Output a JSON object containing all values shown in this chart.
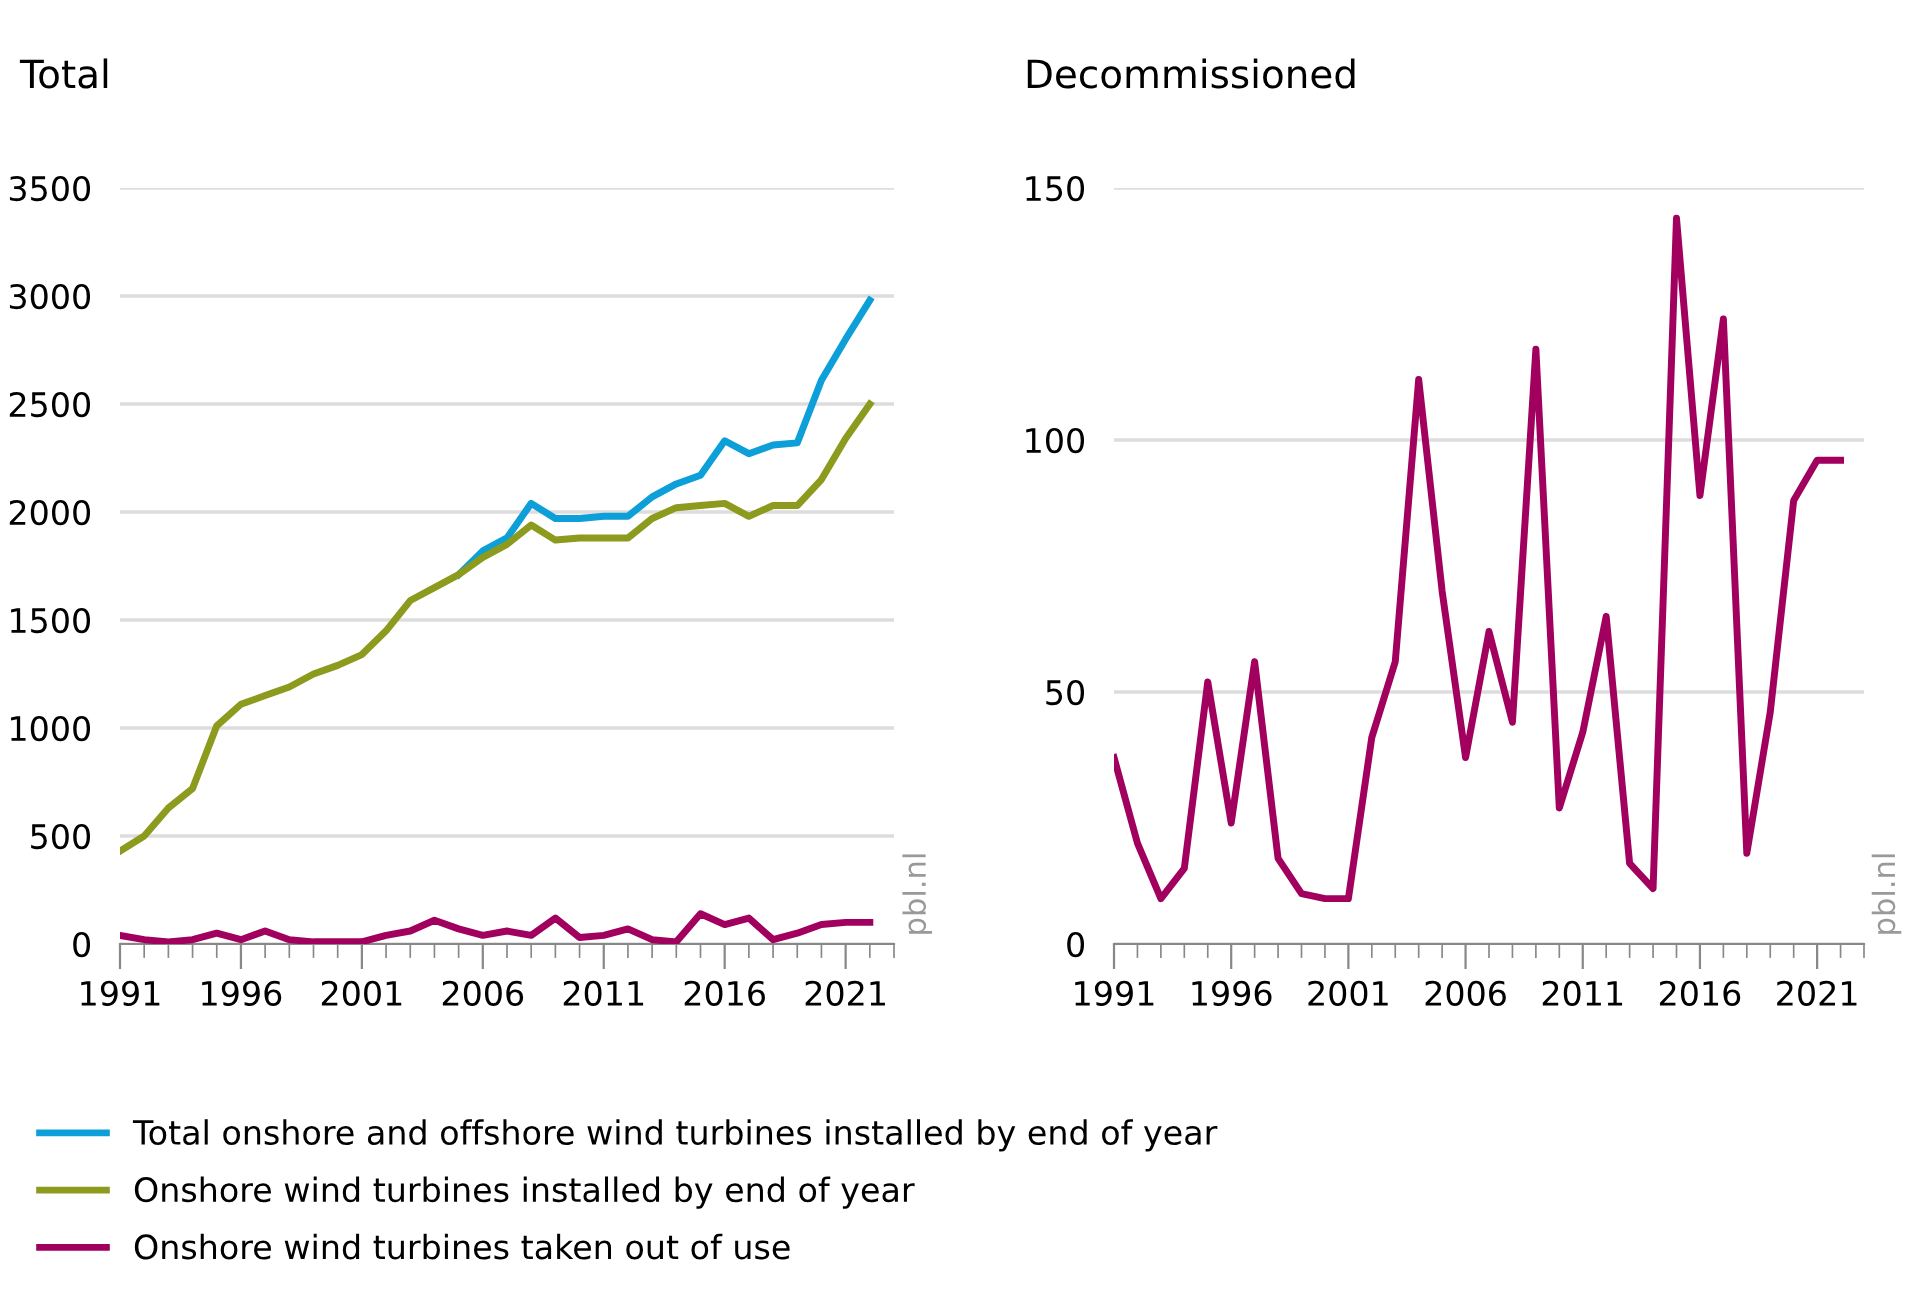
{
  "chart_data": [
    {
      "type": "line",
      "title": "Total",
      "x": [
        1991,
        1992,
        1993,
        1994,
        1995,
        1996,
        1997,
        1998,
        1999,
        2000,
        2001,
        2002,
        2003,
        2004,
        2005,
        2006,
        2007,
        2008,
        2009,
        2010,
        2011,
        2012,
        2013,
        2014,
        2015,
        2016,
        2017,
        2018,
        2019,
        2020,
        2021,
        2022
      ],
      "series": [
        {
          "name": "Total onshore and offshore wind turbines installed by end of year",
          "color": "#0c9fd8",
          "values": [
            null,
            null,
            null,
            null,
            null,
            null,
            null,
            null,
            null,
            null,
            null,
            null,
            null,
            null,
            1710,
            1820,
            1880,
            2040,
            1970,
            1970,
            1980,
            1980,
            2070,
            2130,
            2170,
            2330,
            2270,
            2310,
            2320,
            2610,
            2800,
            2980
          ]
        },
        {
          "name": "Onshore wind turbines installed by end of year",
          "color": "#8c9a1e",
          "values": [
            430,
            500,
            630,
            720,
            1010,
            1110,
            1150,
            1190,
            1250,
            1290,
            1340,
            1450,
            1590,
            1650,
            1710,
            1790,
            1850,
            1940,
            1870,
            1880,
            1880,
            1880,
            1970,
            2020,
            2030,
            2040,
            1980,
            2030,
            2030,
            2150,
            2340,
            2500
          ]
        },
        {
          "name": "Onshore wind turbines taken out of use",
          "color": "#a1005e",
          "values": [
            40,
            20,
            10,
            20,
            50,
            20,
            60,
            20,
            10,
            10,
            10,
            40,
            60,
            110,
            70,
            40,
            60,
            40,
            120,
            30,
            40,
            70,
            20,
            10,
            140,
            90,
            120,
            20,
            50,
            90,
            100,
            100
          ]
        }
      ],
      "xlim": [
        1991,
        2023
      ],
      "xticks": [
        1991,
        1996,
        2001,
        2006,
        2011,
        2016,
        2021
      ],
      "ylim": [
        0,
        3500
      ],
      "yticks": [
        0,
        500,
        1000,
        1500,
        2000,
        2500,
        3000,
        3500
      ],
      "grid": "y",
      "legend": "bottom",
      "line_style": "solid",
      "annotations": [
        "pbl.nl"
      ]
    },
    {
      "type": "line",
      "title": "Decommissioned",
      "x": [
        1991,
        1992,
        1993,
        1994,
        1995,
        1996,
        1997,
        1998,
        1999,
        2000,
        2001,
        2002,
        2003,
        2004,
        2005,
        2006,
        2007,
        2008,
        2009,
        2010,
        2011,
        2012,
        2013,
        2014,
        2015,
        2016,
        2017,
        2018,
        2019,
        2020,
        2021,
        2022
      ],
      "series": [
        {
          "color": "#a1005e",
          "values": [
            37,
            20,
            9,
            15,
            52,
            24,
            56,
            17,
            10,
            9,
            9,
            41,
            56,
            112,
            70,
            37,
            62,
            44,
            118,
            27,
            42,
            65,
            16,
            11,
            144,
            89,
            124,
            18,
            46,
            88,
            96,
            96
          ]
        }
      ],
      "xlim": [
        1991,
        2023
      ],
      "xticks": [
        1991,
        1996,
        2001,
        2006,
        2011,
        2016,
        2021
      ],
      "ylim": [
        0,
        150
      ],
      "yticks": [
        0,
        50,
        100,
        150
      ],
      "grid": "y",
      "line_style": "solid",
      "annotations": [
        "pbl.nl"
      ]
    }
  ]
}
